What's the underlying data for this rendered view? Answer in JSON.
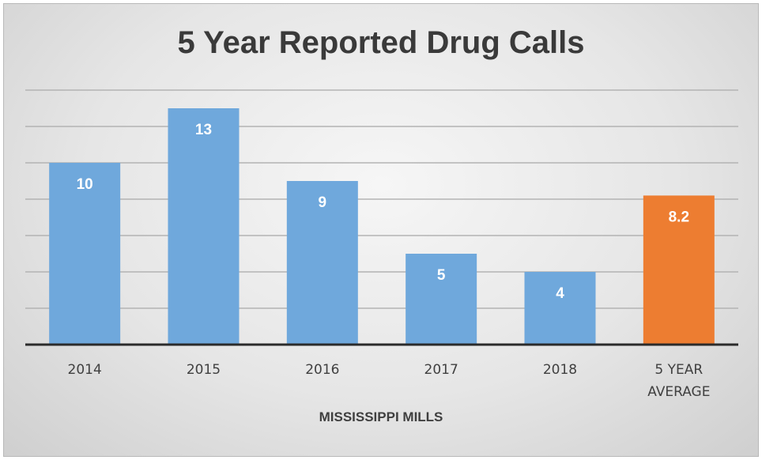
{
  "chart_data": {
    "type": "bar",
    "title": "5 Year Reported Drug Calls",
    "xlabel": "MISSISSIPPI MILLS",
    "ylabel": "",
    "categories": [
      "2014",
      "2015",
      "2016",
      "2017",
      "2018",
      "5 YEAR AVERAGE"
    ],
    "category_lines": [
      [
        "2014"
      ],
      [
        "2015"
      ],
      [
        "2016"
      ],
      [
        "2017"
      ],
      [
        "2018"
      ],
      [
        "5 YEAR",
        "AVERAGE"
      ]
    ],
    "values": [
      10,
      13,
      9,
      5,
      4,
      8.2
    ],
    "data_labels": [
      "10",
      "13",
      "9",
      "5",
      "4",
      "8.2"
    ],
    "bar_colors": [
      "#6fa8dc",
      "#6fa8dc",
      "#6fa8dc",
      "#6fa8dc",
      "#6fa8dc",
      "#ed7d31"
    ],
    "ylim": [
      0,
      14
    ],
    "gridlines": [
      2,
      4,
      6,
      8,
      10,
      12,
      14
    ],
    "grid": true,
    "legend": "none"
  }
}
